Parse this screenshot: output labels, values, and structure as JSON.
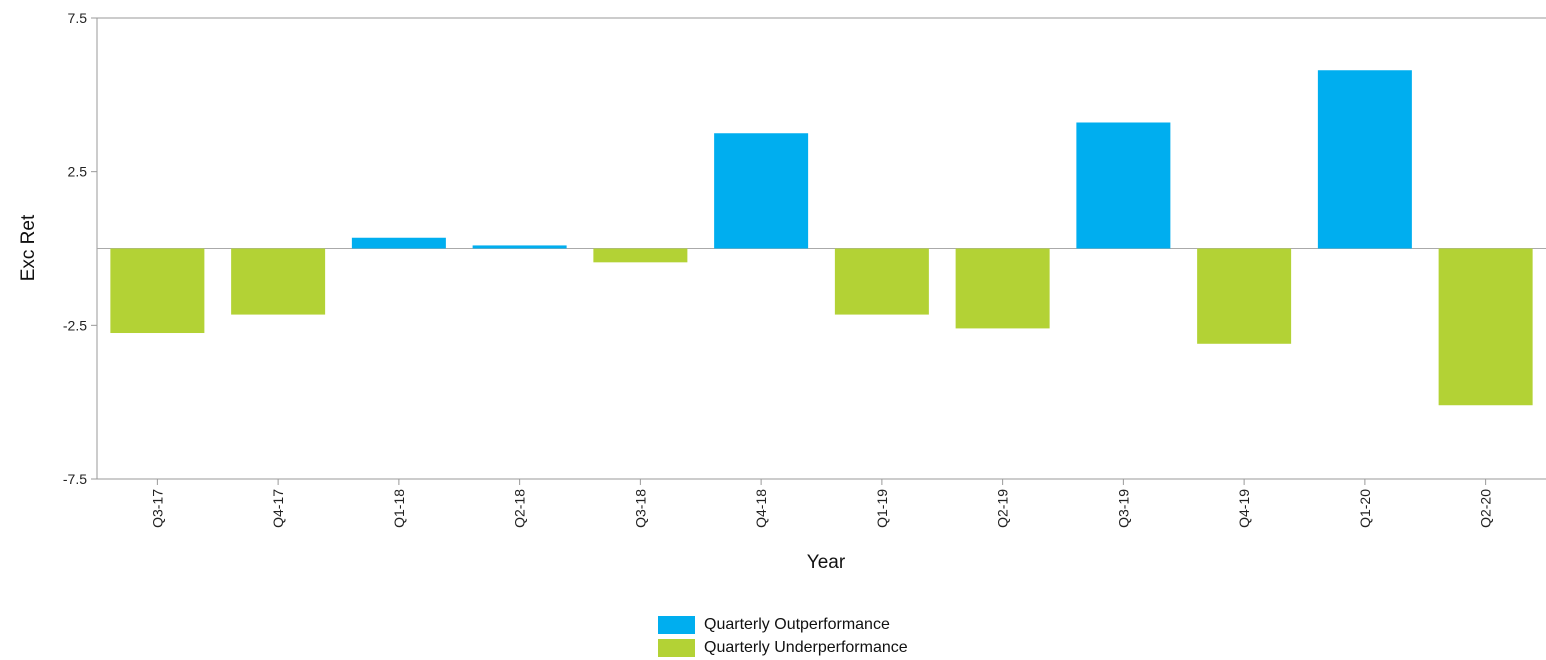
{
  "chart_data": {
    "type": "bar",
    "title": "",
    "xlabel": "Year",
    "ylabel": "Exc Ret",
    "ylim": [
      -7.5,
      7.5
    ],
    "yticks": [
      "7.5",
      "2.5",
      "-2.5",
      "-7.5"
    ],
    "ytick_values": [
      7.5,
      2.5,
      -2.5,
      -7.5
    ],
    "categories": [
      "Q3-17",
      "Q4-17",
      "Q1-18",
      "Q2-18",
      "Q3-18",
      "Q4-18",
      "Q1-19",
      "Q2-19",
      "Q3-19",
      "Q4-19",
      "Q1-20",
      "Q2-20"
    ],
    "values": [
      -2.75,
      -2.15,
      0.35,
      0.1,
      -0.45,
      3.75,
      -2.15,
      -2.6,
      4.1,
      -3.1,
      5.8,
      -5.1
    ],
    "grid": false,
    "legend_position": "bottom-center",
    "series": [
      {
        "name": "Quarterly Outperformance",
        "color": "#00aeef"
      },
      {
        "name": "Quarterly Underperformance",
        "color": "#b3d235"
      }
    ]
  }
}
